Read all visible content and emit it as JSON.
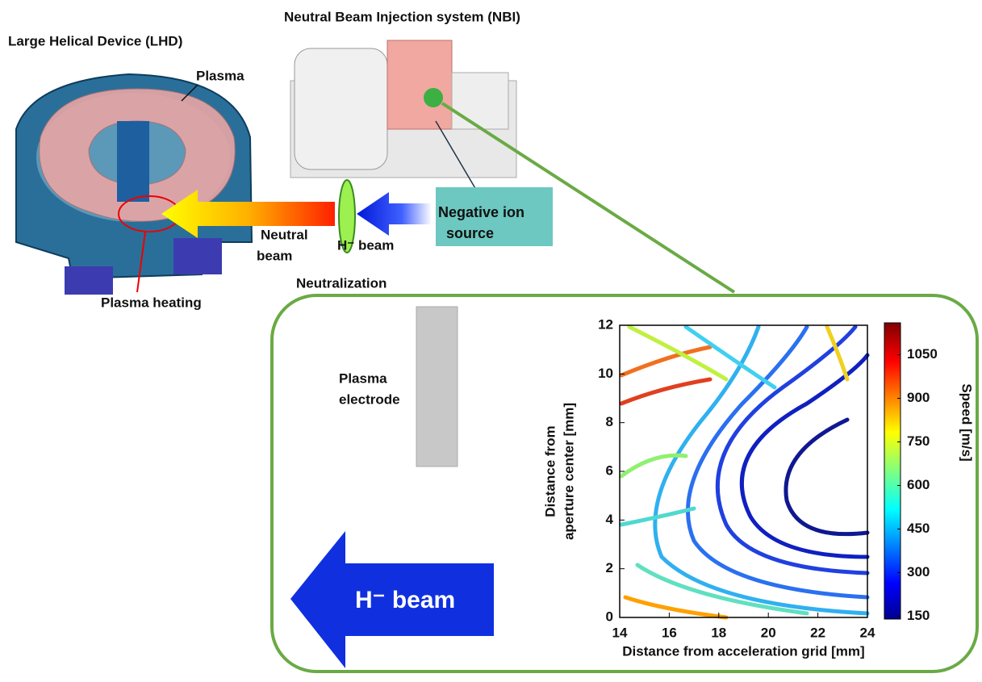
{
  "labels": {
    "lhd_title": "Large Helical Device (LHD)",
    "nbi_title": "Neutral Beam Injection system (NBI)",
    "plasma": "Plasma",
    "plasma_heating": "Plasma heating",
    "neutral_beam": [
      "Neutral",
      "beam"
    ],
    "h_beam_small": "H⁻ beam",
    "neutralization": "Neutralization",
    "negative_ion_source": [
      "Negative ion",
      "source"
    ],
    "plasma_electrode": [
      "Plasma",
      "electrode"
    ],
    "h_beam_big": "H⁻ beam"
  },
  "chart": {
    "xlabel": "Distance from acceleration grid [mm]",
    "ylabel": [
      "Distance from",
      "aperture center [mm]"
    ],
    "xlim": [
      14,
      24
    ],
    "xticks": [
      14,
      16,
      18,
      20,
      22,
      24
    ],
    "ylim": [
      0,
      12
    ],
    "yticks": [
      0,
      2,
      4,
      6,
      8,
      10,
      12
    ],
    "colorbar": {
      "label": "Speed [m/s]",
      "lim": [
        140,
        1160
      ],
      "ticks": [
        150,
        300,
        450,
        600,
        750,
        900,
        1050
      ]
    }
  }
}
